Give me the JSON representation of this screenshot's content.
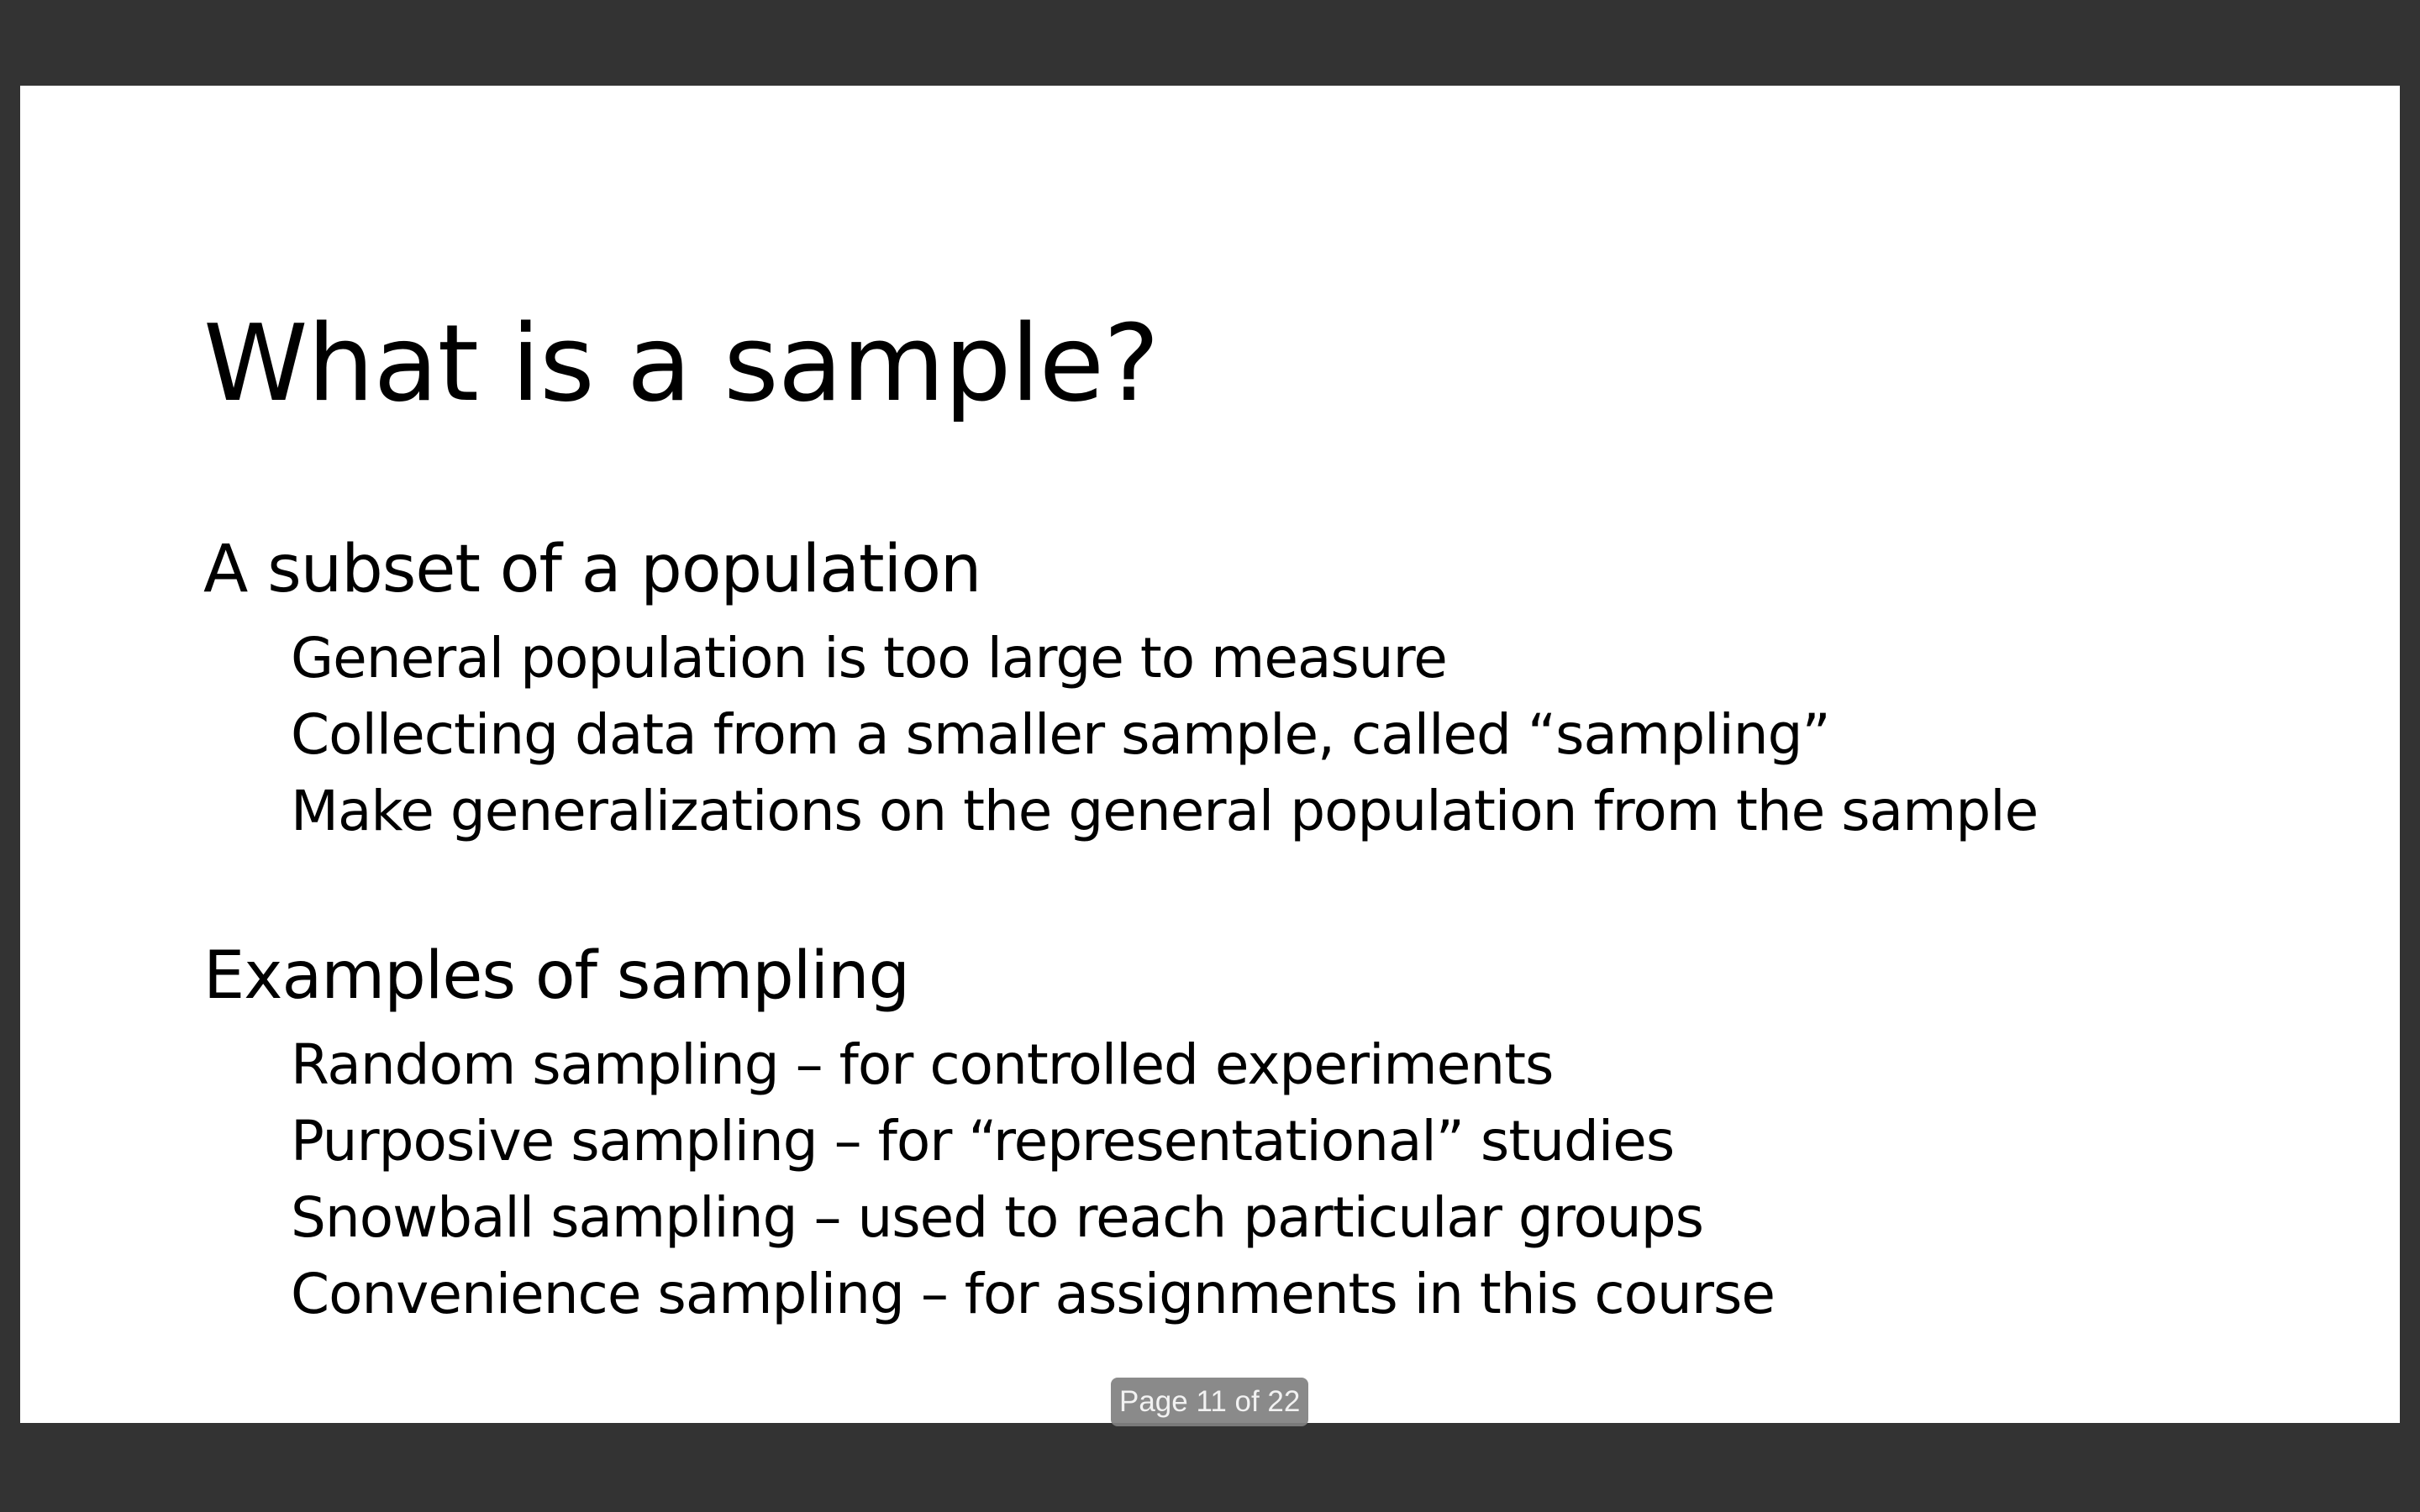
{
  "slide": {
    "title": "What is a sample?",
    "sections": [
      {
        "heading": "A subset of a population",
        "bullets": [
          "General population is too large to measure",
          "Collecting data from a smaller sample, called “sampling”",
          "Make generalizations on the general population from the sample"
        ]
      },
      {
        "heading": "Examples of sampling",
        "bullets": [
          "Random sampling – for controlled experiments",
          "Purposive sampling – for “representational” studies",
          "Snowball sampling – used to reach particular groups",
          "Convenience sampling – for assignments in this course"
        ]
      }
    ]
  },
  "viewer": {
    "page_indicator": "Page 11 of 22"
  },
  "colors": {
    "background": "#333333",
    "slide": "#ffffff",
    "text": "#000000",
    "page_indicator_bg": "#808080"
  }
}
